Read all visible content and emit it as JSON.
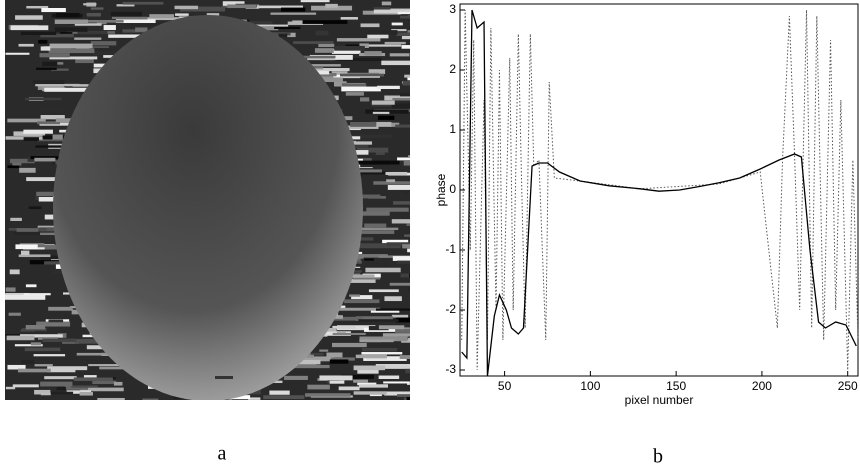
{
  "panels": [
    {
      "label": "a"
    },
    {
      "label": "b"
    }
  ],
  "chart_data": {
    "type": "line",
    "xlabel": "pixel number",
    "ylabel": "phase",
    "xlim": [
      24,
      256
    ],
    "ylim": [
      -3.1,
      3.1
    ],
    "xticks": [
      50,
      100,
      150,
      200,
      250
    ],
    "yticks": [
      -3,
      -2,
      -1,
      0,
      1,
      2,
      3
    ],
    "series": [
      {
        "color": "#000000",
        "style": "solid",
        "x": [
          25,
          28,
          31,
          34,
          38,
          40,
          44,
          47,
          51,
          54,
          58,
          61,
          66,
          70,
          75,
          82,
          94,
          111,
          129,
          140,
          152,
          164,
          175,
          187,
          199,
          210,
          219,
          223,
          228,
          233,
          237,
          243,
          249,
          255
        ],
        "values": [
          -2.7,
          -2.8,
          3.0,
          2.7,
          2.8,
          -3.1,
          -2.1,
          -1.75,
          -2.0,
          -2.3,
          -2.4,
          -2.3,
          0.4,
          0.45,
          0.45,
          0.3,
          0.15,
          0.07,
          0.02,
          -0.02,
          0.0,
          0.06,
          0.12,
          0.2,
          0.35,
          0.5,
          0.6,
          0.55,
          -1.0,
          -2.2,
          -2.3,
          -2.2,
          -2.25,
          -2.6
        ]
      },
      {
        "color": "#555555",
        "style": "dotted",
        "x": [
          25,
          27,
          30,
          32,
          34,
          38,
          40,
          42,
          45,
          47,
          49,
          53,
          55,
          58,
          60,
          62,
          65,
          67,
          70,
          74,
          76,
          79,
          94,
          129,
          175,
          199,
          209,
          212,
          216,
          219,
          222,
          226,
          229,
          232,
          236,
          240,
          243,
          246,
          250,
          253,
          256
        ],
        "values": [
          -2.5,
          3.0,
          -1.0,
          2.5,
          -3.0,
          1.5,
          -2.5,
          2.7,
          -2.0,
          2.0,
          -2.5,
          2.2,
          -2.0,
          2.6,
          0.0,
          -2.3,
          2.6,
          0.4,
          0.5,
          -2.5,
          1.8,
          0.2,
          0.15,
          0.02,
          0.1,
          0.3,
          -2.3,
          0.5,
          2.9,
          0.6,
          -2.0,
          3.0,
          -2.3,
          2.9,
          -2.5,
          2.5,
          -2.0,
          1.5,
          -3.0,
          0.5,
          -2.5
        ]
      }
    ]
  }
}
